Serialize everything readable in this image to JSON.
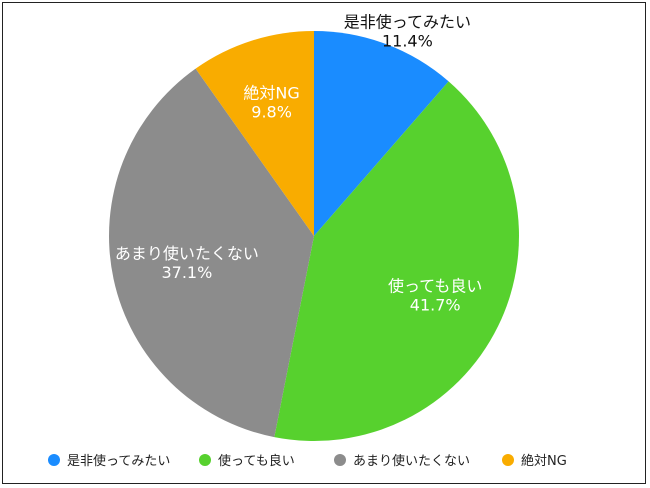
{
  "chart_data": {
    "type": "pie",
    "categories": [
      "是非使ってみたい",
      "使っても良い",
      "あまり使いたくない",
      "絶対NG"
    ],
    "values": [
      11.4,
      41.7,
      37.1,
      9.8
    ],
    "labels": [
      "11.4%",
      "41.7%",
      "37.1%",
      "9.8%"
    ],
    "colors": [
      "#1a8cff",
      "#57d12e",
      "#8c8c8c",
      "#f9ac00"
    ],
    "start_angle": "12 o'clock",
    "direction": "clockwise",
    "legend_position": "bottom",
    "legend": [
      "是非使ってみたい",
      "使っても良い",
      "あまり使いたくない",
      "絶対NG"
    ]
  }
}
